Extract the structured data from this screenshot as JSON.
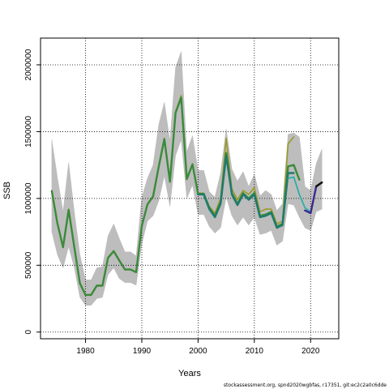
{
  "chart_data": {
    "type": "line",
    "title": "",
    "xlabel": "Years",
    "ylabel": "SSB",
    "xlim": [
      1972,
      2025
    ],
    "ylim": [
      -50000,
      2200000
    ],
    "x_ticks": [
      1980,
      1990,
      2000,
      2010,
      2020
    ],
    "y_ticks": [
      0,
      500000,
      1000000,
      1500000,
      2000000
    ],
    "x_tick_labels": [
      "1980",
      "1990",
      "2000",
      "2010",
      "2020"
    ],
    "y_tick_labels": [
      "0",
      "500000",
      "1000000",
      "1500000",
      "2000000"
    ],
    "grid": "dotted",
    "confidence_band": {
      "years": [
        1974,
        1975,
        1976,
        1977,
        1978,
        1979,
        1980,
        1981,
        1982,
        1983,
        1984,
        1985,
        1986,
        1987,
        1988,
        1989,
        1990,
        1991,
        1992,
        1993,
        1994,
        1995,
        1996,
        1997,
        1998,
        1999,
        2000,
        2001,
        2002,
        2003,
        2004,
        2005,
        2006,
        2007,
        2008,
        2009,
        2010,
        2011,
        2012,
        2013,
        2014,
        2015,
        2016,
        2017,
        2018,
        2019,
        2020,
        2021,
        2022
      ],
      "lower": [
        750000,
        580000,
        480000,
        640000,
        480000,
        260000,
        200000,
        200000,
        250000,
        260000,
        430000,
        480000,
        400000,
        370000,
        370000,
        350000,
        660000,
        830000,
        870000,
        980000,
        1170000,
        940000,
        1320000,
        1440000,
        1000000,
        1100000,
        880000,
        880000,
        790000,
        740000,
        780000,
        1010000,
        870000,
        800000,
        860000,
        800000,
        860000,
        730000,
        740000,
        760000,
        650000,
        680000,
        960000,
        950000,
        860000,
        780000,
        760000,
        900000,
        920000
      ],
      "upper": [
        1440000,
        1160000,
        900000,
        1270000,
        900000,
        580000,
        390000,
        390000,
        480000,
        490000,
        720000,
        810000,
        700000,
        600000,
        600000,
        570000,
        1010000,
        1150000,
        1250000,
        1550000,
        1720000,
        1430000,
        1980000,
        2100000,
        1350000,
        1470000,
        1210000,
        1210000,
        1050000,
        1010000,
        1190000,
        1520000,
        1220000,
        1130000,
        1200000,
        1090000,
        1180000,
        1020000,
        1060000,
        1030000,
        910000,
        960000,
        1480000,
        1490000,
        1460000,
        1090000,
        1060000,
        1260000,
        1370000
      ]
    },
    "series": [
      {
        "color": "#9a9a2a",
        "width": 1.6,
        "x": [
          1974,
          1975,
          1976,
          1977,
          1978,
          1979,
          1980,
          1981,
          1982,
          1983,
          1984,
          1985,
          1986,
          1987,
          1988,
          1989,
          1990,
          1991,
          1992,
          1993,
          1994,
          1995,
          1996,
          1997,
          1998,
          1999,
          2000,
          2001,
          2002,
          2003,
          2004,
          2005,
          2006,
          2007,
          2008,
          2009,
          2010,
          2011,
          2012,
          2013,
          2014,
          2015,
          2016,
          2017
        ],
        "y": [
          1060000,
          820000,
          640000,
          920000,
          640000,
          370000,
          280000,
          280000,
          350000,
          350000,
          560000,
          610000,
          540000,
          470000,
          470000,
          450000,
          800000,
          960000,
          1020000,
          1240000,
          1450000,
          1130000,
          1650000,
          1770000,
          1150000,
          1260000,
          1040000,
          1040000,
          940000,
          890000,
          1000000,
          1450000,
          1070000,
          990000,
          1060000,
          1030000,
          1080000,
          900000,
          920000,
          920000,
          810000,
          830000,
          1410000,
          1460000
        ]
      },
      {
        "color": "#3a8a3a",
        "width": 2.4,
        "x": [
          1974,
          1975,
          1976,
          1977,
          1978,
          1979,
          1980,
          1981,
          1982,
          1983,
          1984,
          1985,
          1986,
          1987,
          1988,
          1989,
          1990,
          1991,
          1992,
          1993,
          1994,
          1995,
          1996,
          1997,
          1998,
          1999,
          2000,
          2001,
          2002,
          2003,
          2004,
          2005,
          2006,
          2007,
          2008,
          2009,
          2010,
          2011,
          2012,
          2013,
          2014,
          2015,
          2016,
          2017,
          2018
        ],
        "y": [
          1055000,
          815000,
          635000,
          915000,
          635000,
          365000,
          278000,
          278000,
          347000,
          347000,
          555000,
          605000,
          535000,
          468000,
          468000,
          448000,
          795000,
          955000,
          1015000,
          1235000,
          1445000,
          1125000,
          1640000,
          1755000,
          1145000,
          1255000,
          1035000,
          1035000,
          930000,
          870000,
          970000,
          1340000,
          1040000,
          960000,
          1040000,
          1000000,
          1040000,
          870000,
          880000,
          900000,
          790000,
          810000,
          1240000,
          1250000,
          1140000
        ]
      },
      {
        "color": "#1e7a6e",
        "width": 2.4,
        "x": [
          2000,
          2001,
          2002,
          2003,
          2004,
          2005,
          2006,
          2007,
          2008,
          2009,
          2010,
          2011,
          2012,
          2013,
          2014,
          2015,
          2016,
          2017
        ],
        "y": [
          1030000,
          1030000,
          920000,
          860000,
          960000,
          1320000,
          1030000,
          950000,
          1030000,
          990000,
          1030000,
          860000,
          870000,
          890000,
          780000,
          800000,
          1190000,
          1190000
        ]
      },
      {
        "color": "#2aafa8",
        "width": 1.8,
        "x": [
          2016,
          2017,
          2018,
          2019,
          2020
        ],
        "y": [
          1150000,
          1160000,
          1030000,
          930000,
          900000
        ]
      },
      {
        "color": "#3b2a90",
        "width": 2.4,
        "x": [
          2019,
          2020,
          2021,
          2022
        ],
        "y": [
          910000,
          890000,
          1090000,
          1120000
        ]
      },
      {
        "color": "#111111",
        "width": 2.4,
        "x": [
          2021,
          2022
        ],
        "y": [
          1090000,
          1120000
        ]
      }
    ]
  },
  "footer": "stockassessment.org, spnd2020wgbfas, r17351, git:ec2c2a0c6dde"
}
